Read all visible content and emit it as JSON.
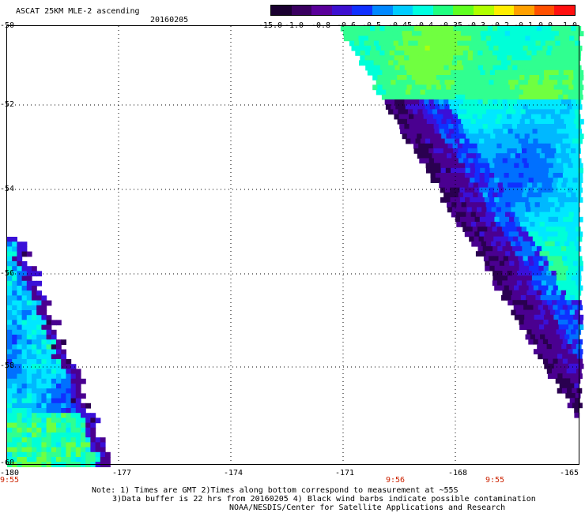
{
  "header": {
    "title": "ASCAT 25KM MLE-2 ascending",
    "date": "20160205"
  },
  "colorbar": {
    "labels": [
      "-15.0",
      "-1.0",
      "-0.8",
      "-0.6",
      "-0.5",
      "-0.45",
      "-0.4",
      "-0.35",
      "-0.3",
      "-0.2",
      "-0.1",
      "0.0",
      "1.0"
    ],
    "colors": [
      "#1a0030",
      "#3a0060",
      "#5a009a",
      "#3d10d0",
      "#1030ff",
      "#0088ff",
      "#00ccff",
      "#00ffe0",
      "#20ff80",
      "#60ff20",
      "#b0ff00",
      "#ffee00",
      "#ffa000",
      "#ff5000",
      "#ff1010"
    ]
  },
  "map": {
    "lat_labels": [
      "-50",
      "-52",
      "-54",
      "-56",
      "-58",
      "-60"
    ],
    "lon_labels": [
      "-180",
      "-177",
      "-174",
      "-171",
      "-168",
      "-165"
    ],
    "time_labels": [
      "9:55",
      "9:56",
      "9:55"
    ]
  },
  "notes": {
    "line1": "Note: 1) Times are GMT 2)Times along bottom correspond to measurement at ~55S",
    "line2": "3)Data buffer is 22 hrs from 20160205 4) Black wind barbs indicate possible contamination",
    "line3": "NOAA/NESDIS/Center for Satellite Applications and Research"
  }
}
